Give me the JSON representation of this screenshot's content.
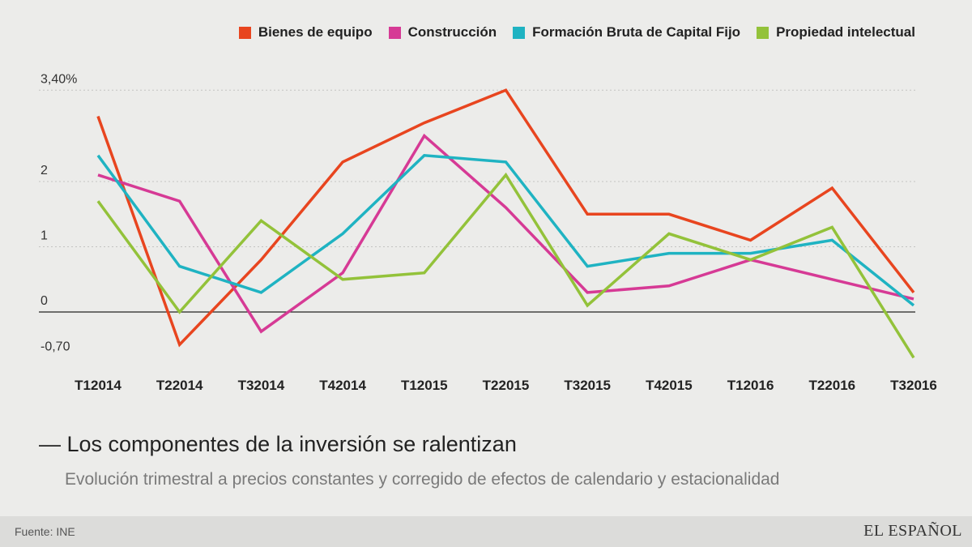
{
  "chart_data": {
    "type": "line",
    "title": "— Los componentes de la inversión se ralentizan",
    "subtitle": "Evolución trimestral a precios constantes y corregido de efectos de calendario y estacionalidad",
    "categories": [
      "T12014",
      "T22014",
      "T32014",
      "T42014",
      "T12015",
      "T22015",
      "T32015",
      "T42015",
      "T12016",
      "T22016",
      "T32016"
    ],
    "y_ticks": [
      {
        "value": 3.4,
        "label": "3,40%"
      },
      {
        "value": 2,
        "label": "2"
      },
      {
        "value": 1,
        "label": "1"
      },
      {
        "value": 0,
        "label": "0"
      },
      {
        "value": -0.7,
        "label": "-0,70"
      }
    ],
    "ylim": [
      -0.7,
      3.4
    ],
    "grid": true,
    "legend_position": "top-right",
    "series": [
      {
        "name": "Bienes de equipo",
        "color": "#e8451f",
        "values": [
          3.0,
          -0.5,
          0.8,
          2.3,
          2.9,
          3.4,
          1.5,
          1.5,
          1.1,
          1.9,
          0.3
        ]
      },
      {
        "name": "Construcción",
        "color": "#d63a95",
        "values": [
          2.1,
          1.7,
          -0.3,
          0.6,
          2.7,
          1.6,
          0.3,
          0.4,
          0.8,
          0.5,
          0.2
        ]
      },
      {
        "name": "Formación Bruta de Capital Fijo",
        "color": "#1fb3c2",
        "values": [
          2.4,
          0.7,
          0.3,
          1.2,
          2.4,
          2.3,
          0.7,
          0.9,
          0.9,
          1.1,
          0.1
        ]
      },
      {
        "name": "Propiedad intelectual",
        "color": "#93c23a",
        "values": [
          1.7,
          0.0,
          1.4,
          0.5,
          0.6,
          2.1,
          0.1,
          1.2,
          0.8,
          1.3,
          -0.7
        ]
      }
    ]
  },
  "footer": {
    "source": "Fuente: INE",
    "brand": "EL ESPAÑOL"
  }
}
